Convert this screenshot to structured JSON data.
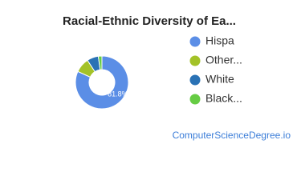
{
  "chart_data": {
    "type": "donut",
    "title": "Racial-Ethnic Diversity of Ea...",
    "categories": [
      "Hispa",
      "Other...",
      "White",
      "Black..."
    ],
    "values": [
      81.8,
      9,
      7,
      2.2
    ],
    "value_labels": [
      "81.8%",
      null,
      null,
      null
    ],
    "colors": [
      "#5b8ee6",
      "#a3c228",
      "#2a72b5",
      "#66cc44"
    ],
    "source": "ComputerScienceDegree.io"
  }
}
